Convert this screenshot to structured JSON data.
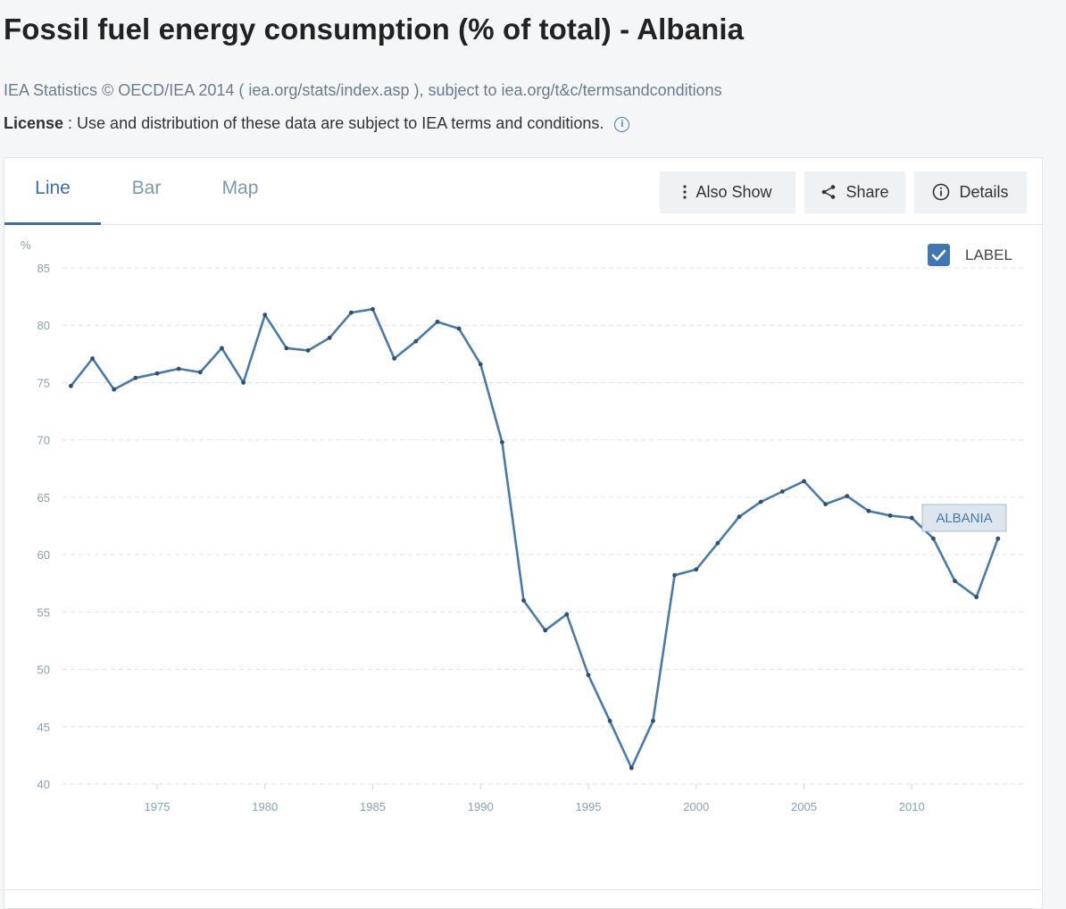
{
  "header": {
    "title": "Fossil fuel energy consumption (% of total) - Albania",
    "source": "IEA Statistics © OECD/IEA 2014 ( iea.org/stats/index.asp ), subject to iea.org/t&c/termsandconditions",
    "license_label": "License",
    "license_text": " : Use and distribution of these data are subject to IEA terms and conditions."
  },
  "tabs": [
    {
      "label": "Line",
      "active": true
    },
    {
      "label": "Bar",
      "active": false
    },
    {
      "label": "Map",
      "active": false
    }
  ],
  "toolbar": {
    "also_show_label": "Also Show",
    "share_label": "Share",
    "details_label": "Details"
  },
  "label_toggle": {
    "text": "LABEL",
    "checked": true
  },
  "colors": {
    "series": "#4a7aa8",
    "accent": "#3d6fa6",
    "checkbox": "#3f77b5"
  },
  "chart_data": {
    "type": "line",
    "ylabel": "%",
    "ylim": [
      40,
      85
    ],
    "yticks": [
      40,
      45,
      50,
      55,
      60,
      65,
      70,
      75,
      80,
      85
    ],
    "xlim": [
      1970,
      2014
    ],
    "xticks": [
      1975,
      1980,
      1985,
      1990,
      1995,
      2000,
      2005,
      2010
    ],
    "grid": true,
    "legend": "none",
    "series": [
      {
        "name": "ALBANIA",
        "x": [
          1971,
          1972,
          1973,
          1974,
          1975,
          1976,
          1977,
          1978,
          1979,
          1980,
          1981,
          1982,
          1983,
          1984,
          1985,
          1986,
          1987,
          1988,
          1989,
          1990,
          1991,
          1992,
          1993,
          1994,
          1995,
          1996,
          1997,
          1998,
          1999,
          2000,
          2001,
          2002,
          2003,
          2004,
          2005,
          2006,
          2007,
          2008,
          2009,
          2010,
          2011,
          2012,
          2013,
          2014
        ],
        "values": [
          74.7,
          77.1,
          74.4,
          75.4,
          75.8,
          76.2,
          75.9,
          78.0,
          75.0,
          80.9,
          78.0,
          77.8,
          78.9,
          81.1,
          81.4,
          77.1,
          78.6,
          80.3,
          79.7,
          76.6,
          69.8,
          56.0,
          53.4,
          54.8,
          49.5,
          45.5,
          41.4,
          45.5,
          58.2,
          58.7,
          61.0,
          63.3,
          64.6,
          65.5,
          66.4,
          64.4,
          65.1,
          63.8,
          63.4,
          63.2,
          61.4,
          57.7,
          56.3,
          61.4
        ]
      }
    ]
  }
}
